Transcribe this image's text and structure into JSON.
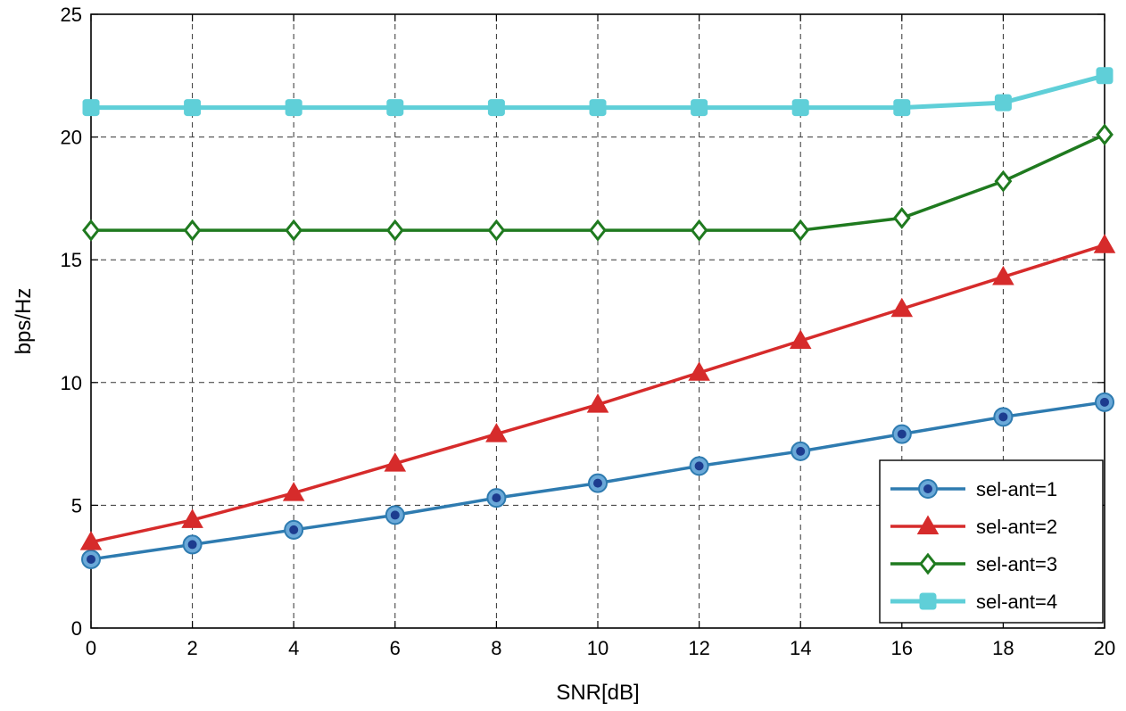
{
  "chart_data": {
    "type": "line",
    "title": "",
    "xlabel": "SNR[dB]",
    "ylabel": "bps/Hz",
    "xlim": [
      0,
      20
    ],
    "ylim": [
      0,
      25
    ],
    "xticks": [
      0,
      2,
      4,
      6,
      8,
      10,
      12,
      14,
      16,
      18,
      20
    ],
    "yticks": [
      0,
      5,
      10,
      15,
      20,
      25
    ],
    "grid": true,
    "legend_position": "bottom-right",
    "x": [
      0,
      2,
      4,
      6,
      8,
      10,
      12,
      14,
      16,
      18,
      20
    ],
    "series": [
      {
        "name": "sel-ant=1",
        "color": "#2e7bb0",
        "marker": "circle",
        "values": [
          2.8,
          3.4,
          4.0,
          4.6,
          5.3,
          5.9,
          6.6,
          7.2,
          7.9,
          8.6,
          9.2
        ]
      },
      {
        "name": "sel-ant=2",
        "color": "#d62b2b",
        "marker": "triangle",
        "values": [
          3.5,
          4.4,
          5.5,
          6.7,
          7.9,
          9.1,
          10.4,
          11.7,
          13.0,
          14.3,
          15.6
        ]
      },
      {
        "name": "sel-ant=3",
        "color": "#1f7a1f",
        "marker": "diamond",
        "values": [
          16.2,
          16.2,
          16.2,
          16.2,
          16.2,
          16.2,
          16.2,
          16.2,
          16.7,
          18.2,
          20.1
        ]
      },
      {
        "name": "sel-ant=4",
        "color": "#5fcfd8",
        "marker": "square",
        "values": [
          21.2,
          21.2,
          21.2,
          21.2,
          21.2,
          21.2,
          21.2,
          21.2,
          21.2,
          21.4,
          22.5
        ]
      }
    ]
  }
}
